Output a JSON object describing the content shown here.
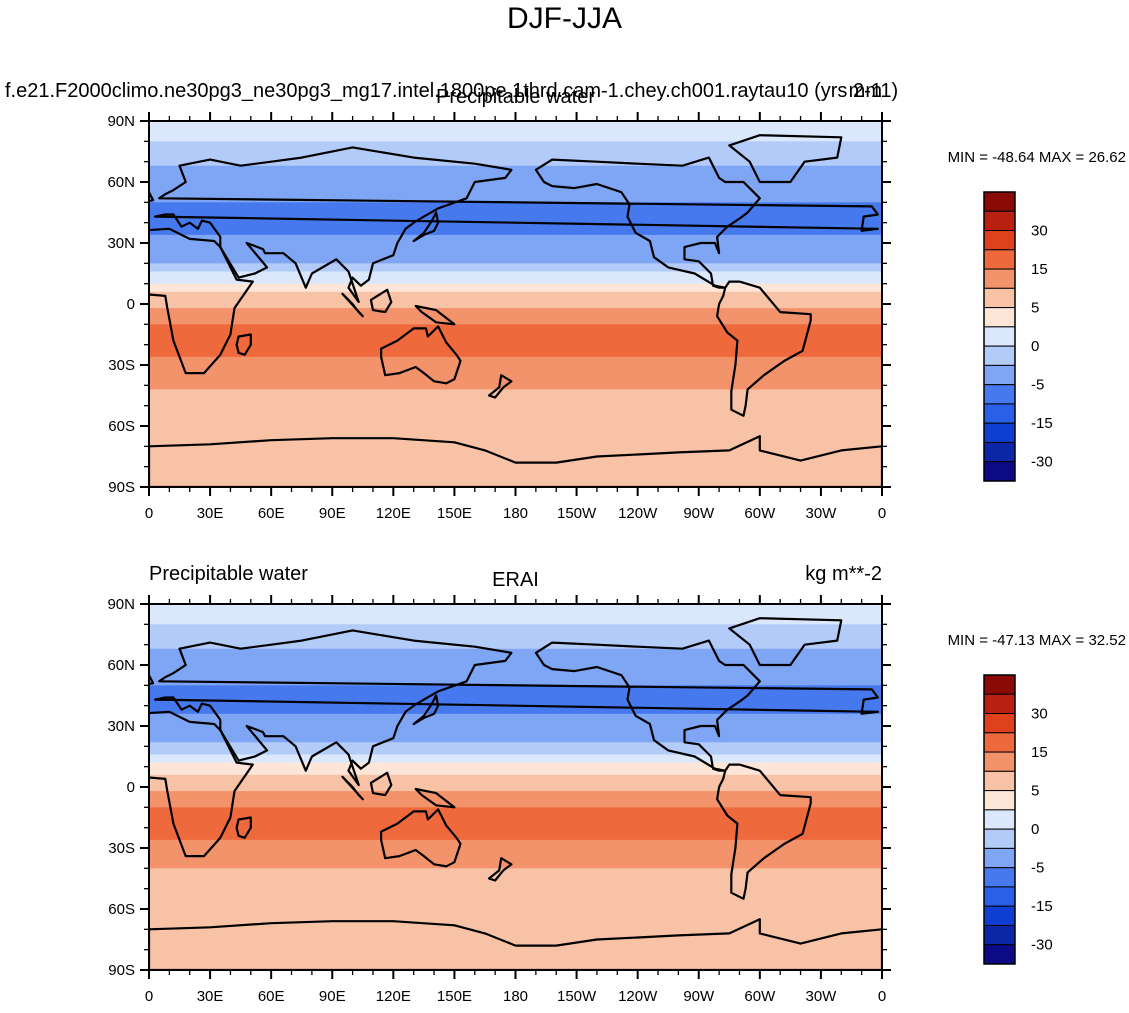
{
  "page_title": "DJF-JJA",
  "colors": {
    "scale": [
      "#0b0b87",
      "#0c26a8",
      "#0f3fd2",
      "#2a5fe8",
      "#4678ee",
      "#7fa6f5",
      "#b3cbf8",
      "#dbe8fc",
      "#fde6d8",
      "#f8c2a6",
      "#f3936c",
      "#ee6a3d",
      "#e0401c",
      "#b8210f",
      "#8a0a05"
    ],
    "coast": "#000000"
  },
  "chart_data": [
    {
      "type": "heatmap",
      "title_left": "f.e21.F2000climo.ne30pg3_ne30pg3_mg17.intel.1800pe.1thrd.cam-1.chey.ch001.raytau10 (yrs 2-11)",
      "title_center": "Precipitable water",
      "title_right": "mm",
      "min_max_label": "MIN = -48.64 MAX =  26.62",
      "min": -48.64,
      "max": 26.62,
      "x_ticks": [
        "0",
        "30E",
        "60E",
        "90E",
        "120E",
        "150E",
        "180",
        "150W",
        "120W",
        "90W",
        "60W",
        "30W",
        "0"
      ],
      "y_ticks": [
        "90N",
        "60N",
        "30N",
        "0",
        "30S",
        "60S",
        "90S"
      ],
      "xlim": [
        0,
        360
      ],
      "ylim": [
        -90,
        90
      ],
      "colorbar_labels": [
        "30",
        "15",
        "5",
        "0",
        "-5",
        "-15",
        "-30"
      ],
      "zonal_profile": {
        "lat": [
          90,
          60,
          40,
          20,
          10,
          0,
          -10,
          -20,
          -30,
          -45,
          -60,
          -75,
          -90
        ],
        "value": [
          -6,
          -18,
          -22,
          -16,
          -4,
          4,
          10,
          14,
          8,
          4,
          3,
          1,
          0
        ]
      }
    },
    {
      "type": "heatmap",
      "title_left": "Precipitable water",
      "title_center": "ERAI",
      "title_right": "kg m**-2",
      "min_max_label": "MIN = -47.13 MAX =  32.52",
      "min": -47.13,
      "max": 32.52,
      "x_ticks": [
        "0",
        "30E",
        "60E",
        "90E",
        "120E",
        "150E",
        "180",
        "150W",
        "120W",
        "90W",
        "60W",
        "30W",
        "0"
      ],
      "y_ticks": [
        "90N",
        "60N",
        "30N",
        "0",
        "30S",
        "60S",
        "90S"
      ],
      "xlim": [
        0,
        360
      ],
      "ylim": [
        -90,
        90
      ],
      "colorbar_labels": [
        "30",
        "15",
        "5",
        "0",
        "-5",
        "-15",
        "-30"
      ],
      "zonal_profile": {
        "lat": [
          90,
          60,
          40,
          20,
          10,
          0,
          -10,
          -20,
          -30,
          -45,
          -60,
          -75,
          -90
        ],
        "value": [
          -6,
          -18,
          -22,
          -14,
          -3,
          4,
          10,
          13,
          7,
          4,
          3,
          1,
          0
        ]
      }
    }
  ]
}
